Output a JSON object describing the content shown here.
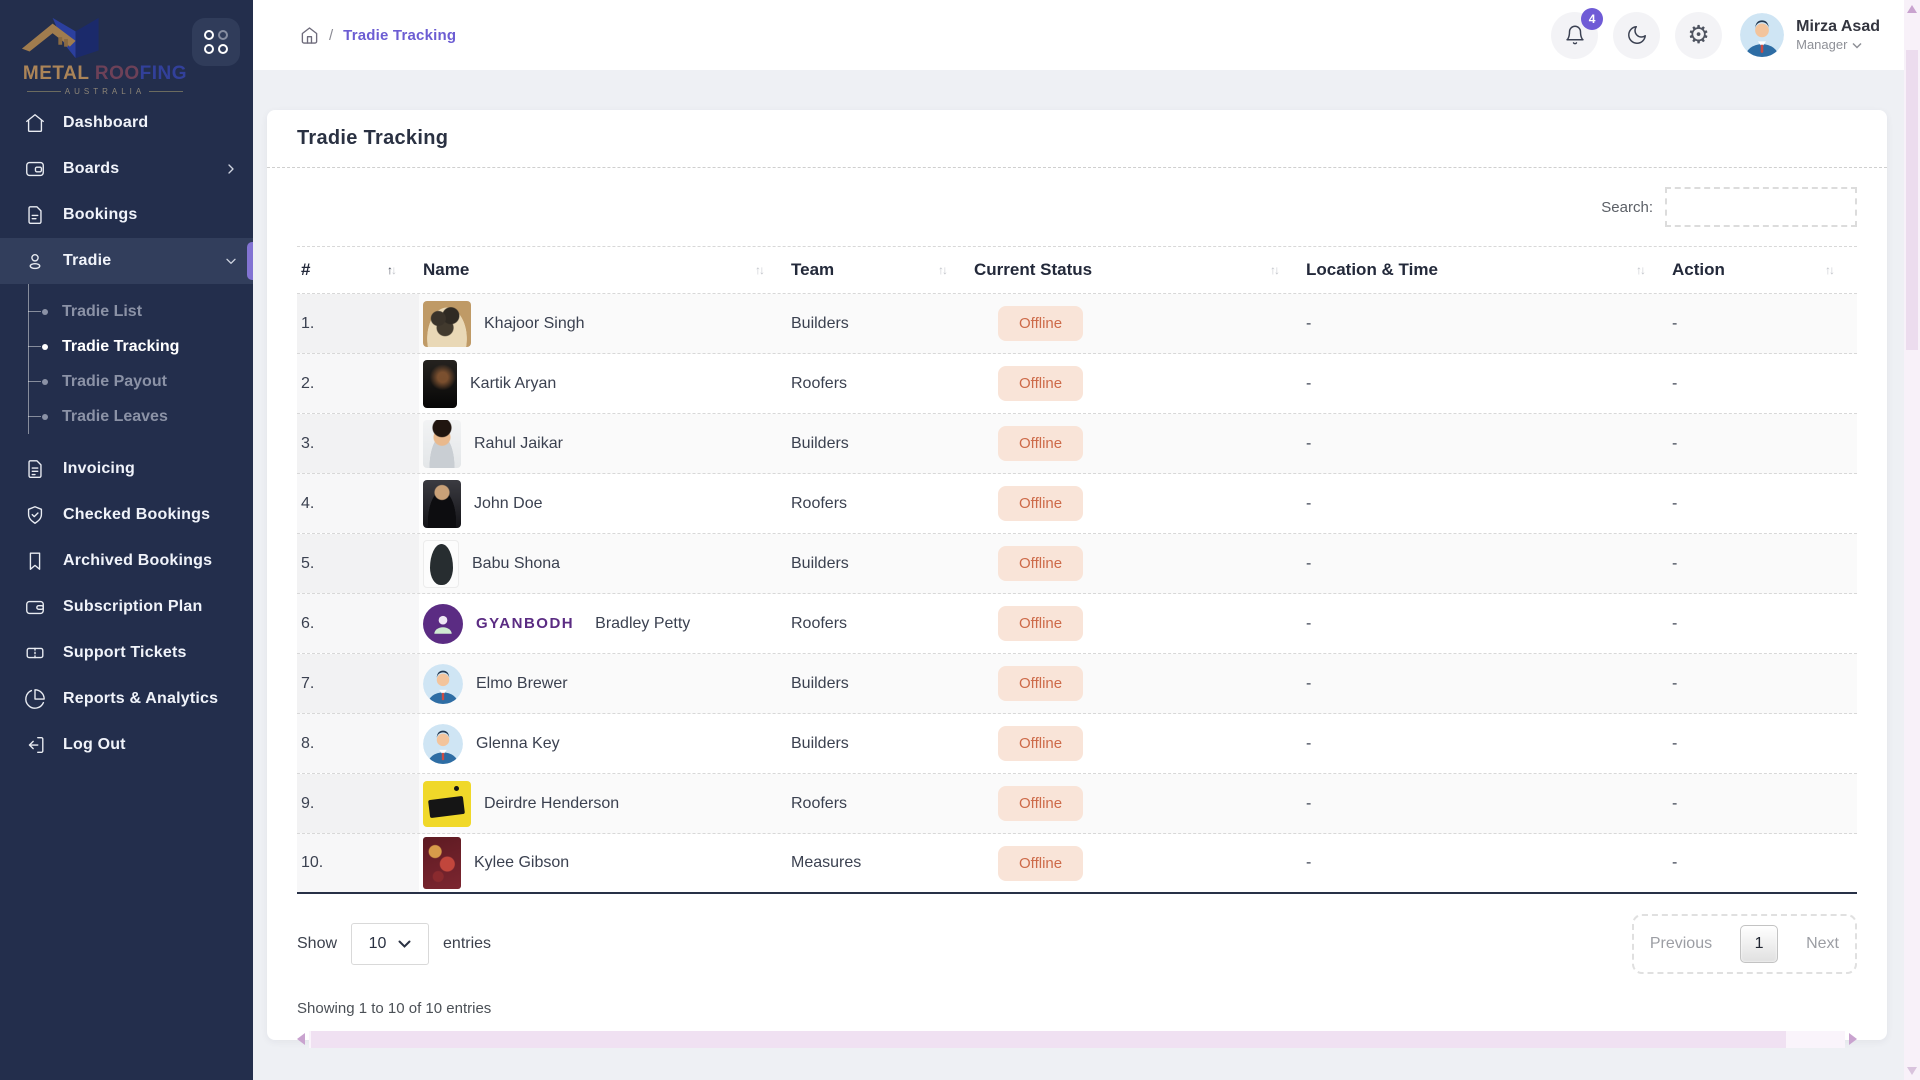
{
  "colors": {
    "accent_purple": "#6c5dd3",
    "sidebar_bg": "#232e4c",
    "active_item_bg": "#323e5c",
    "badge_bg": "#f9e4d8",
    "badge_text": "#cd6a49",
    "gyanbodh_purple": "#5b2c83",
    "scrollbar_lavender": "#f0e1f2"
  },
  "sidebar": {
    "logo": {
      "brand_metal": "METAL",
      "brand_roofing": "ROOFING",
      "brand_country": "AUSTRALIA"
    },
    "items": [
      {
        "label": "Dashboard",
        "icon": "home-icon"
      },
      {
        "label": "Boards",
        "icon": "boards-icon",
        "chevron": "right"
      },
      {
        "label": "Bookings",
        "icon": "file-icon"
      },
      {
        "label": "Tradie",
        "icon": "user-icon",
        "chevron": "down",
        "active": true
      },
      {
        "label": "Tradie List",
        "sub": true
      },
      {
        "label": "Tradie Tracking",
        "sub": true,
        "active": true
      },
      {
        "label": "Tradie Payout",
        "sub": true
      },
      {
        "label": "Tradie Leaves",
        "sub": true
      },
      {
        "label": "Invoicing",
        "icon": "invoice-icon"
      },
      {
        "label": "Checked Bookings",
        "icon": "shield-check-icon"
      },
      {
        "label": "Archived Bookings",
        "icon": "bookmark-icon"
      },
      {
        "label": "Subscription Plan",
        "icon": "wallet-icon"
      },
      {
        "label": "Support Tickets",
        "icon": "ticket-icon"
      },
      {
        "label": "Reports & Analytics",
        "icon": "pie-chart-icon"
      },
      {
        "label": "Log Out",
        "icon": "logout-icon"
      }
    ]
  },
  "header": {
    "breadcrumb_separator": "/",
    "breadcrumb_current": "Tradie Tracking",
    "notification_count": "4",
    "user_name": "Mirza Asad",
    "user_role": "Manager"
  },
  "page": {
    "title": "Tradie Tracking",
    "search_label": "Search:"
  },
  "table": {
    "columns": [
      "#",
      "Name",
      "Team",
      "Current Status",
      "Location & Time",
      "Action"
    ],
    "sort_icons": {
      "asc": "↑",
      "desc": "↓"
    },
    "rows": [
      {
        "num": "1.",
        "name": "Khajoor Singh",
        "avatar": "dates-photo",
        "team": "Builders",
        "status": "Offline",
        "location": "-",
        "action": "-"
      },
      {
        "num": "2.",
        "name": "Kartik Aryan",
        "avatar": "portrait-dark-photo",
        "team": "Roofers",
        "status": "Offline",
        "location": "-",
        "action": "-"
      },
      {
        "num": "3.",
        "name": "Rahul Jaikar",
        "avatar": "portrait-light-photo",
        "team": "Builders",
        "status": "Offline",
        "location": "-",
        "action": "-"
      },
      {
        "num": "4.",
        "name": "John Doe",
        "avatar": "portrait-suit-photo",
        "team": "Roofers",
        "status": "Offline",
        "location": "-",
        "action": "-"
      },
      {
        "num": "5.",
        "name": "Babu Shona",
        "avatar": "case-photo",
        "team": "Builders",
        "status": "Offline",
        "location": "-",
        "action": "-"
      },
      {
        "num": "6.",
        "name": "Bradley Petty",
        "avatar": "gyanbodh-logo",
        "avatar_text": "GYANBODH",
        "team": "Roofers",
        "status": "Offline",
        "location": "-",
        "action": "-"
      },
      {
        "num": "7.",
        "name": "Elmo Brewer",
        "avatar": "cartoon-avatar",
        "team": "Builders",
        "status": "Offline",
        "location": "-",
        "action": "-"
      },
      {
        "num": "8.",
        "name": "Glenna Key",
        "avatar": "cartoon-avatar",
        "team": "Builders",
        "status": "Offline",
        "location": "-",
        "action": "-"
      },
      {
        "num": "9.",
        "name": "Deirdre Henderson",
        "avatar": "sign-photo",
        "team": "Roofers",
        "status": "Offline",
        "location": "-",
        "action": "-"
      },
      {
        "num": "10.",
        "name": "Kylee Gibson",
        "avatar": "poster-photo",
        "team": "Measures",
        "status": "Offline",
        "location": "-",
        "action": "-"
      }
    ]
  },
  "footer": {
    "show_label": "Show",
    "page_size": "10",
    "entries_label": "entries",
    "prev_label": "Previous",
    "page_number": "1",
    "next_label": "Next",
    "summary": "Showing 1 to 10 of 10 entries"
  }
}
